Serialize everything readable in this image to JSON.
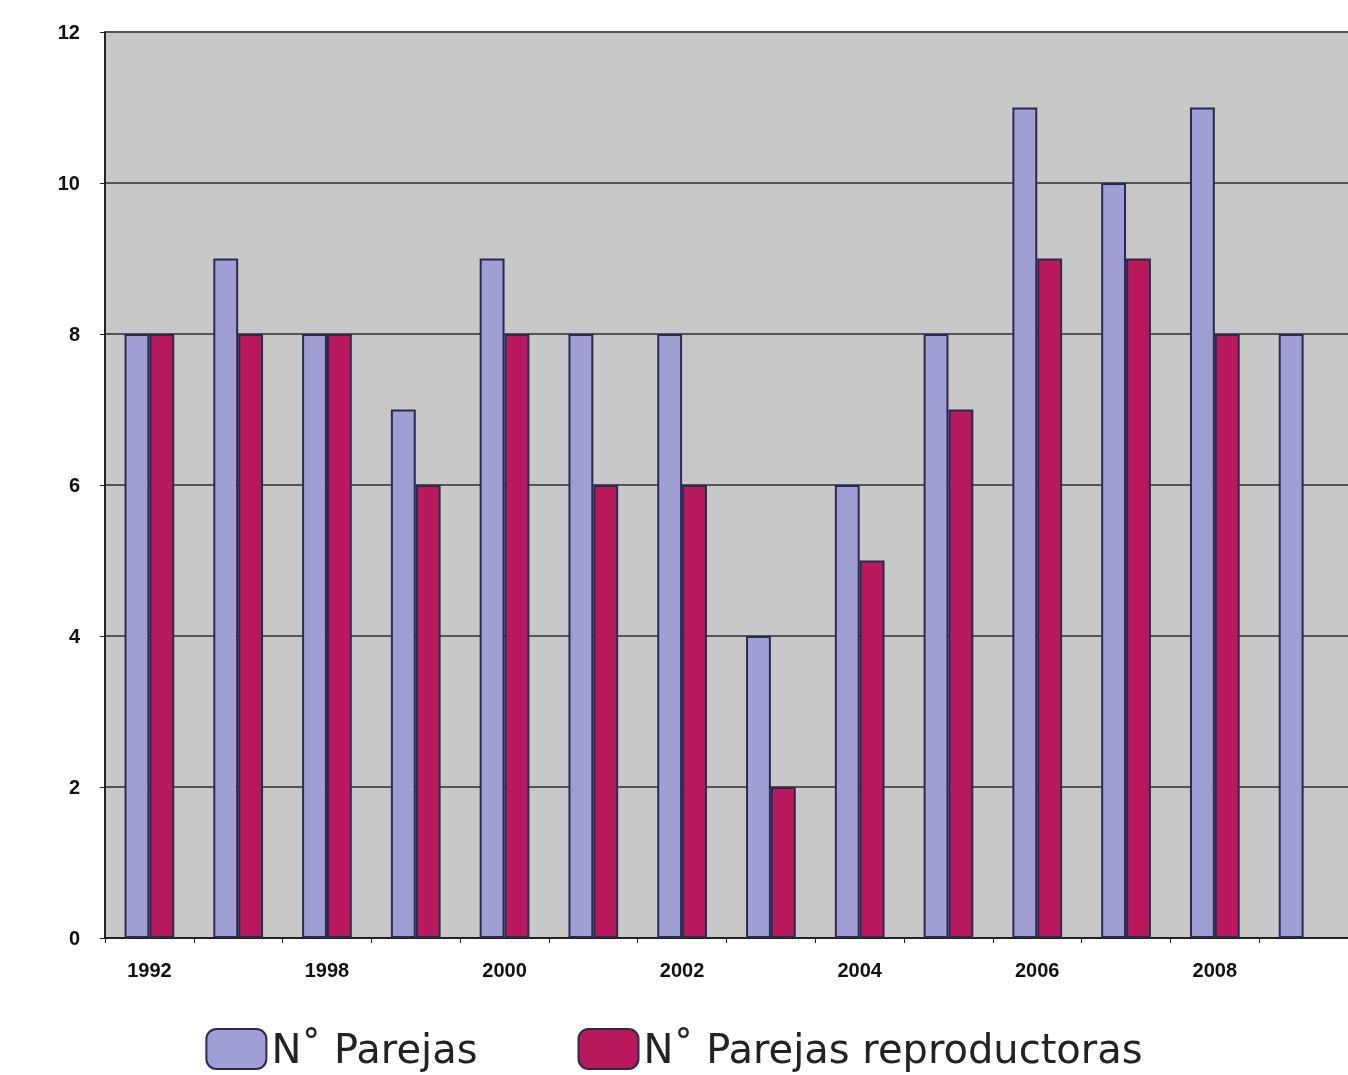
{
  "chart_data": {
    "type": "bar",
    "categories": [
      "1992",
      null,
      "1998",
      null,
      "2000",
      null,
      "2002",
      null,
      "2004",
      null,
      "2006",
      null,
      "2008",
      null
    ],
    "series": [
      {
        "name": "N˚ Parejas",
        "color": "#9f9fd6",
        "values": [
          8,
          9,
          8,
          7,
          9,
          8,
          8,
          4,
          6,
          8,
          11,
          10,
          11,
          8
        ]
      },
      {
        "name": "N˚ Parejas reproductoras",
        "color": "#b8195c",
        "values": [
          8,
          8,
          8,
          6,
          8,
          6,
          6,
          2,
          5,
          7,
          9,
          9,
          8,
          null
        ]
      }
    ],
    "ylim": [
      0,
      12
    ],
    "yticks": [
      0,
      2,
      4,
      6,
      8,
      10,
      12
    ],
    "grid": "y",
    "legend": "bottom"
  }
}
